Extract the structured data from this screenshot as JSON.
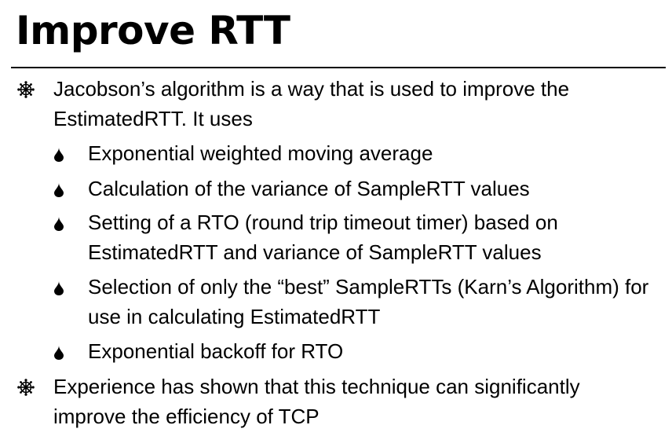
{
  "slide": {
    "title": "Improve RTT",
    "bullets": [
      {
        "text": "Jacobson’s algorithm is a way that is used to improve the EstimatedRTT.  It uses",
        "marker_icon": "wheel-icon",
        "sub_bullets": [
          {
            "text": "Exponential weighted moving average",
            "marker_icon": "drop-icon"
          },
          {
            "text": "Calculation of the variance of SampleRTT values",
            "marker_icon": "drop-icon"
          },
          {
            "text": "Setting of a RTO (round trip timeout timer) based on EstimatedRTT and variance of SampleRTT values",
            "marker_icon": "drop-icon"
          },
          {
            "text": "Selection of only the “best” SampleRTTs  (Karn’s Algorithm) for use in calculating EstimatedRTT",
            "marker_icon": "drop-icon"
          },
          {
            "text": "Exponential backoff for RTO",
            "marker_icon": "drop-icon"
          }
        ]
      },
      {
        "text": "Experience has shown that this technique can significantly improve the efficiency of TCP",
        "marker_icon": "wheel-icon",
        "sub_bullets": []
      }
    ]
  }
}
